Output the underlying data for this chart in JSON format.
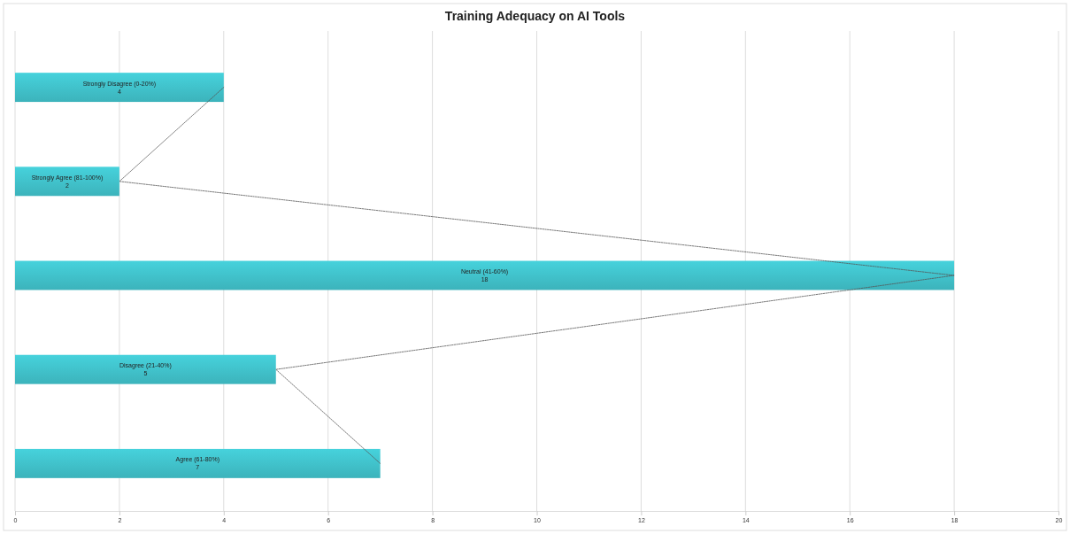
{
  "chart_data": {
    "type": "bar",
    "orientation": "horizontal",
    "title": "Training Adequacy on AI Tools",
    "categories": [
      "Strongly Disagree  (0-20%)",
      "Strongly Agree (81-100%)",
      "Neutral (41-60%)",
      "Disagree (21-40%)",
      "Agree (61-80%)"
    ],
    "series": [
      {
        "type": "bar",
        "color": "#40c0c9",
        "values": [
          4,
          2,
          18,
          5,
          7
        ]
      },
      {
        "type": "line",
        "color": "#555555",
        "line_style": "dotted",
        "values": [
          4,
          2,
          18,
          5,
          7
        ],
        "value_labels": [
          null,
          null,
          null,
          null,
          null
        ]
      }
    ],
    "xlim": [
      0,
      20
    ],
    "xticks": [
      0,
      2,
      4,
      6,
      8,
      10,
      12,
      14,
      16,
      18,
      20
    ],
    "grid": "x",
    "data_labels": true
  }
}
